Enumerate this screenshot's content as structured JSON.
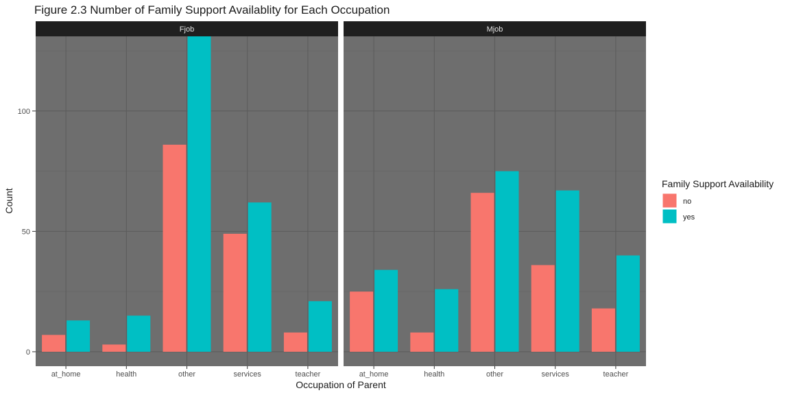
{
  "chart_data": {
    "type": "bar",
    "title": "Figure 2.3 Number of Family Support Availablity for Each Occupation",
    "xlabel": "Occupation of Parent",
    "ylabel": "Count",
    "ylim": [
      -6,
      131
    ],
    "yticks": [
      0,
      50,
      100
    ],
    "grid": true,
    "categories": [
      "at_home",
      "health",
      "other",
      "services",
      "teacher"
    ],
    "legend": {
      "title": "Family Support Availability",
      "position": "right",
      "entries": [
        {
          "label": "no",
          "color": "#F8766D"
        },
        {
          "label": "yes",
          "color": "#00BFC4"
        }
      ]
    },
    "panels": [
      {
        "label": "Fjob",
        "series": [
          {
            "name": "no",
            "color": "#F8766D",
            "values": [
              7,
              3,
              86,
              49,
              8
            ]
          },
          {
            "name": "yes",
            "color": "#00BFC4",
            "values": [
              13,
              15,
              131,
              62,
              21
            ]
          }
        ]
      },
      {
        "label": "Mjob",
        "series": [
          {
            "name": "no",
            "color": "#F8766D",
            "values": [
              25,
              8,
              66,
              36,
              18
            ]
          },
          {
            "name": "yes",
            "color": "#00BFC4",
            "values": [
              34,
              26,
              75,
              67,
              40
            ]
          }
        ]
      }
    ]
  },
  "colors": {
    "panel_background": "#6E6E6E",
    "grid_major": "#5C5C5C",
    "grid_minor": "#656565",
    "strip_background": "#1F1F1F",
    "strip_text": "#E6E6E6"
  }
}
